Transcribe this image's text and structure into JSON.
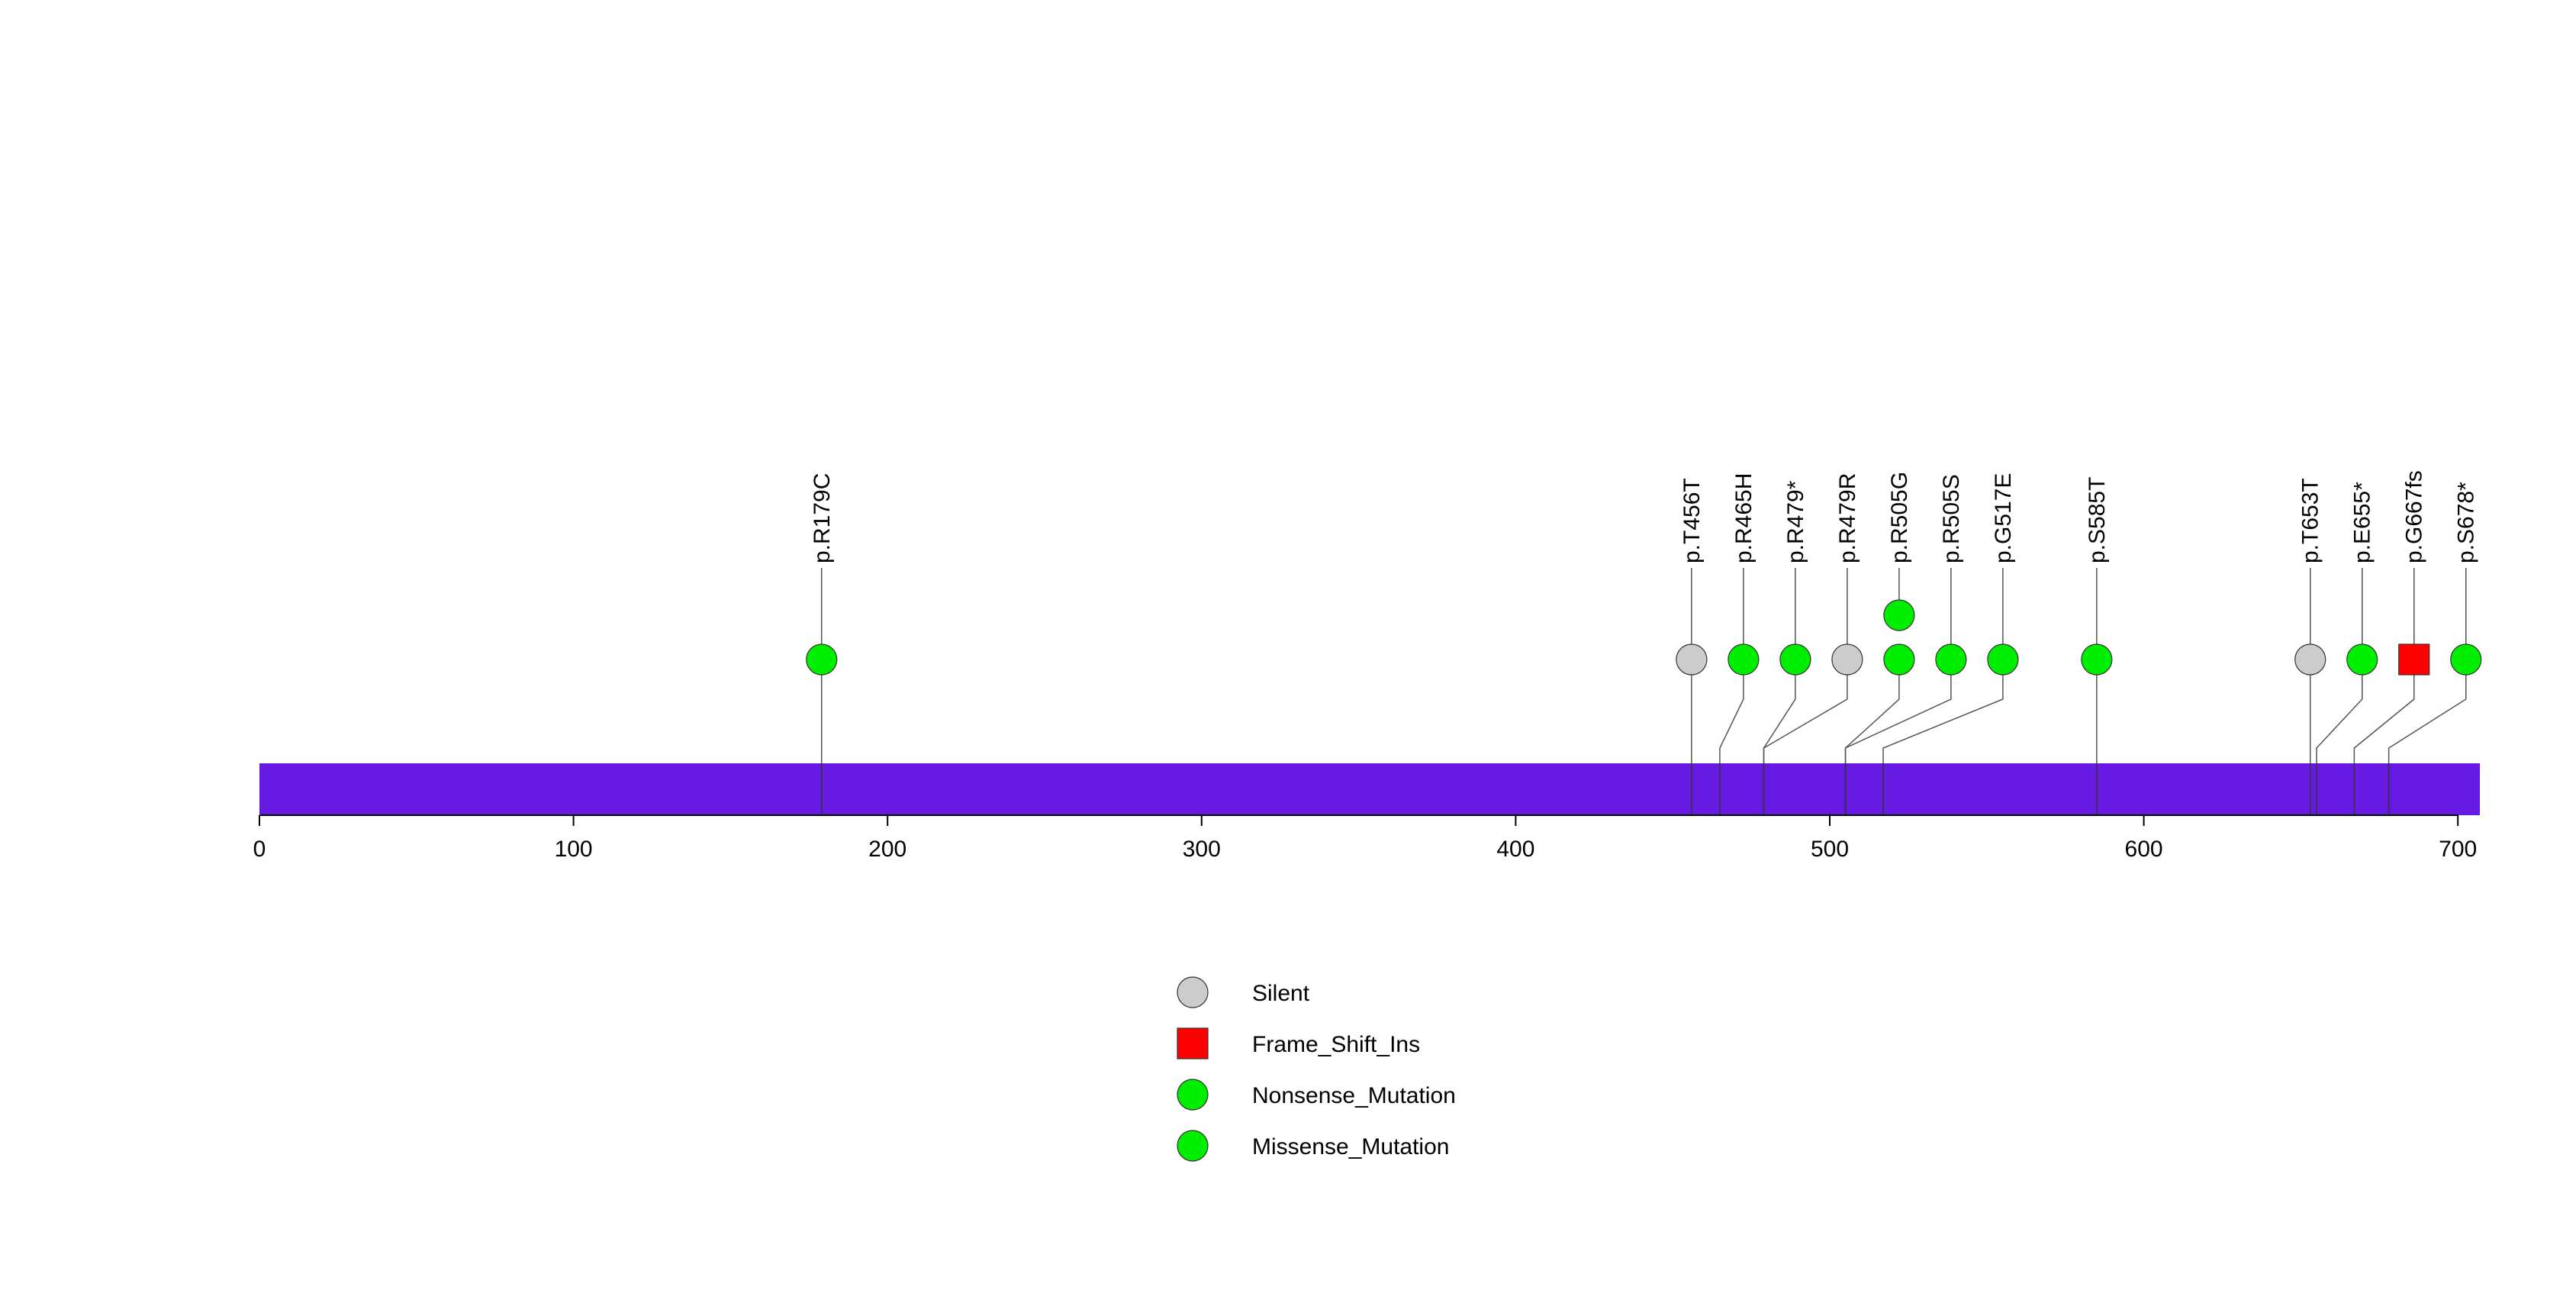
{
  "chart_data": {
    "type": "lollipop",
    "protein_length": 707,
    "x_axis": {
      "min": 0,
      "max": 707,
      "ticks": [
        0,
        100,
        200,
        300,
        400,
        500,
        600,
        700
      ]
    },
    "domain_color": "#6619e0",
    "mutations": [
      {
        "label": "p.R179C",
        "position": 179,
        "type": "Missense_Mutation",
        "count": 1
      },
      {
        "label": "p.T456T",
        "position": 456,
        "type": "Silent",
        "count": 1
      },
      {
        "label": "p.R465H",
        "position": 465,
        "type": "Missense_Mutation",
        "count": 1
      },
      {
        "label": "p.R479*",
        "position": 479,
        "type": "Nonsense_Mutation",
        "count": 1
      },
      {
        "label": "p.R479R",
        "position": 479,
        "type": "Silent",
        "count": 1
      },
      {
        "label": "p.R505G",
        "position": 505,
        "type": "Missense_Mutation",
        "count": 2
      },
      {
        "label": "p.R505S",
        "position": 505,
        "type": "Missense_Mutation",
        "count": 1
      },
      {
        "label": "p.G517E",
        "position": 517,
        "type": "Missense_Mutation",
        "count": 1
      },
      {
        "label": "p.S585T",
        "position": 585,
        "type": "Missense_Mutation",
        "count": 1
      },
      {
        "label": "p.T653T",
        "position": 653,
        "type": "Silent",
        "count": 1
      },
      {
        "label": "p.E655*",
        "position": 655,
        "type": "Nonsense_Mutation",
        "count": 1
      },
      {
        "label": "p.G667fs",
        "position": 667,
        "type": "Frame_Shift_Ins",
        "count": 1
      },
      {
        "label": "p.S678*",
        "position": 678,
        "type": "Nonsense_Mutation",
        "count": 1
      }
    ],
    "legend": [
      {
        "label": "Silent",
        "shape": "circle",
        "color": "#cccccc"
      },
      {
        "label": "Frame_Shift_Ins",
        "shape": "square",
        "color": "#ff0000"
      },
      {
        "label": "Nonsense_Mutation",
        "shape": "circle",
        "color": "#00ee00"
      },
      {
        "label": "Missense_Mutation",
        "shape": "circle",
        "color": "#00ee00"
      }
    ],
    "type_colors": {
      "Silent": "#cccccc",
      "Frame_Shift_Ins": "#ff0000",
      "Nonsense_Mutation": "#00ee00",
      "Missense_Mutation": "#00ee00"
    }
  }
}
